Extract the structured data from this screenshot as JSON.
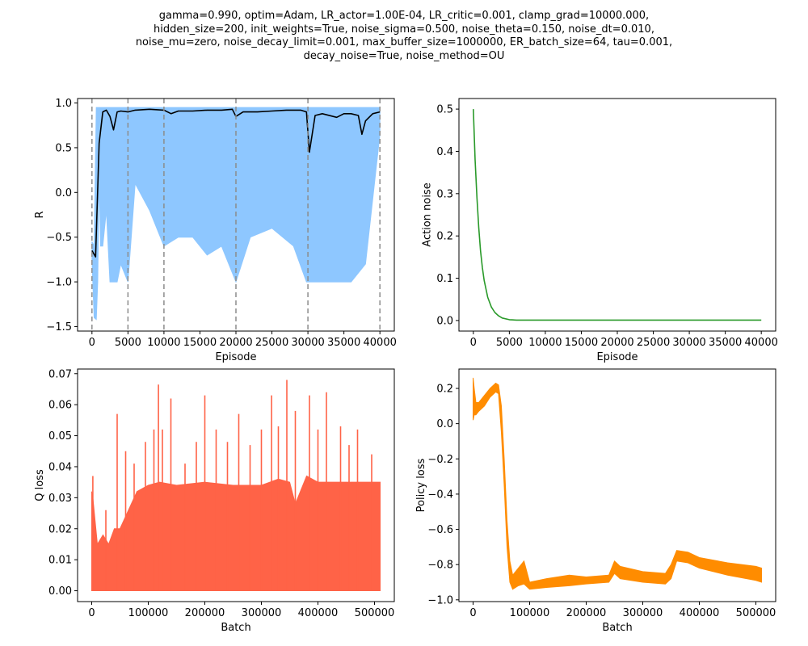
{
  "suptitle_lines": [
    "gamma=0.990, optim=Adam, LR_actor=1.00E-04, LR_critic=0.001, clamp_grad=10000.000,",
    "hidden_size=200, init_weights=True, noise_sigma=0.500, noise_theta=0.150, noise_dt=0.010,",
    "noise_mu=zero, noise_decay_limit=0.001, max_buffer_size=1000000, ER_batch_size=64, tau=0.001,",
    "decay_noise=True, noise_method=OU"
  ],
  "chart_data": [
    {
      "id": "reward",
      "type": "line",
      "xlabel": "Episode",
      "ylabel": "R",
      "xlim": [
        -2000,
        42000
      ],
      "ylim": [
        -1.55,
        1.05
      ],
      "xticks": [
        0,
        5000,
        10000,
        15000,
        20000,
        25000,
        30000,
        35000,
        40000
      ],
      "yticks": [
        -1.5,
        -1.0,
        -0.5,
        0.0,
        0.5,
        1.0
      ],
      "ytick_labels": [
        "−1.5",
        "−1.0",
        "−0.5",
        "0.0",
        "0.5",
        "1.0"
      ],
      "vlines": [
        0,
        5000,
        10000,
        20000,
        30000,
        40000
      ],
      "vline_color": "#8c8c8c",
      "series": [
        {
          "style": "band",
          "color": "#8ec7ff",
          "x": [
            0,
            300,
            600,
            800,
            1000,
            1200,
            1500,
            2000,
            2500,
            3000,
            3500,
            4000,
            5000,
            6000,
            8000,
            10000,
            12000,
            14000,
            16000,
            18000,
            20000,
            22000,
            25000,
            28000,
            29800,
            30200,
            32000,
            34000,
            36000,
            38000,
            40000
          ],
          "upper": [
            -0.55,
            -0.6,
            0.95,
            0.95,
            0.95,
            0.95,
            0.95,
            0.95,
            0.95,
            0.95,
            0.95,
            0.95,
            0.95,
            0.95,
            0.95,
            0.95,
            0.95,
            0.95,
            0.95,
            0.95,
            0.95,
            0.95,
            0.95,
            0.95,
            0.95,
            0.95,
            0.95,
            0.95,
            0.95,
            0.95,
            0.95
          ],
          "lower": [
            -0.75,
            -1.4,
            -1.42,
            -1.0,
            0.2,
            -0.6,
            -0.6,
            -0.2,
            -1.0,
            -1.0,
            -1.0,
            -0.8,
            -1.0,
            0.1,
            -0.2,
            -0.6,
            -0.5,
            -0.5,
            -0.7,
            -0.6,
            -1.0,
            -0.5,
            -0.4,
            -0.6,
            -1.0,
            -1.0,
            -1.0,
            -1.0,
            -1.0,
            -0.8,
            0.65
          ]
        },
        {
          "style": "line",
          "color": "#000000",
          "x": [
            0,
            500,
            1000,
            1500,
            2000,
            2500,
            3000,
            3500,
            4000,
            5000,
            6000,
            8000,
            10000,
            11000,
            12000,
            14000,
            16000,
            18000,
            19500,
            20000,
            21000,
            23000,
            25000,
            27000,
            29000,
            29800,
            30200,
            31000,
            32000,
            34000,
            35000,
            36000,
            37000,
            37500,
            38000,
            39000,
            40000
          ],
          "y": [
            -0.65,
            -0.72,
            0.55,
            0.9,
            0.92,
            0.85,
            0.7,
            0.9,
            0.91,
            0.9,
            0.92,
            0.93,
            0.92,
            0.88,
            0.91,
            0.91,
            0.92,
            0.92,
            0.93,
            0.85,
            0.9,
            0.9,
            0.91,
            0.92,
            0.92,
            0.9,
            0.45,
            0.86,
            0.88,
            0.84,
            0.88,
            0.88,
            0.86,
            0.65,
            0.8,
            0.88,
            0.9
          ]
        }
      ]
    },
    {
      "id": "noise",
      "type": "line",
      "xlabel": "Episode",
      "ylabel": "Action noise",
      "xlim": [
        -2000,
        42000
      ],
      "ylim": [
        -0.025,
        0.525
      ],
      "xticks": [
        0,
        5000,
        10000,
        15000,
        20000,
        25000,
        30000,
        35000,
        40000
      ],
      "yticks": [
        0.0,
        0.1,
        0.2,
        0.3,
        0.4,
        0.5
      ],
      "ytick_labels": [
        "0.0",
        "0.1",
        "0.2",
        "0.3",
        "0.4",
        "0.5"
      ],
      "series": [
        {
          "style": "line",
          "color": "#2a9a2a",
          "x": [
            0,
            250,
            500,
            750,
            1000,
            1250,
            1500,
            2000,
            2500,
            3000,
            3500,
            4000,
            5000,
            6000,
            8000,
            10000,
            20000,
            30000,
            40000
          ],
          "y": [
            0.5,
            0.38,
            0.29,
            0.22,
            0.165,
            0.125,
            0.095,
            0.055,
            0.032,
            0.019,
            0.011,
            0.006,
            0.002,
            0.001,
            0.001,
            0.001,
            0.001,
            0.001,
            0.001
          ]
        }
      ]
    },
    {
      "id": "qloss",
      "type": "line",
      "xlabel": "Batch",
      "ylabel": "Q loss",
      "xlim": [
        -25000,
        535000
      ],
      "ylim": [
        -0.0035,
        0.0715
      ],
      "xticks": [
        0,
        100000,
        200000,
        300000,
        400000,
        500000
      ],
      "yticks": [
        0.0,
        0.01,
        0.02,
        0.03,
        0.04,
        0.05,
        0.06,
        0.07
      ],
      "ytick_labels": [
        "0.00",
        "0.01",
        "0.02",
        "0.03",
        "0.04",
        "0.05",
        "0.06",
        "0.07"
      ],
      "series": [
        {
          "style": "band",
          "color": "#ff6347",
          "x": [
            0,
            2000,
            10000,
            20000,
            30000,
            40000,
            50000,
            60000,
            70000,
            80000,
            100000,
            120000,
            150000,
            200000,
            250000,
            300000,
            330000,
            350000,
            360000,
            380000,
            400000,
            450000,
            500000,
            510000
          ],
          "upper": [
            0.032,
            0.03,
            0.015,
            0.018,
            0.015,
            0.02,
            0.02,
            0.024,
            0.028,
            0.032,
            0.034,
            0.035,
            0.034,
            0.035,
            0.034,
            0.034,
            0.036,
            0.035,
            0.028,
            0.037,
            0.035,
            0.035,
            0.035,
            0.035
          ],
          "lower": [
            0.0,
            0.0,
            0.0,
            0.0,
            0.0,
            0.0,
            0.0,
            0.0,
            0.0,
            0.0,
            0.0,
            0.0,
            0.0,
            0.0,
            0.0,
            0.0,
            0.0,
            0.0,
            0.0,
            0.0,
            0.0,
            0.0,
            0.0,
            0.0
          ]
        },
        {
          "style": "spikes",
          "color": "#ff6347",
          "x": [
            2000,
            25000,
            45000,
            60000,
            75000,
            95000,
            110000,
            118000,
            125000,
            140000,
            165000,
            185000,
            200000,
            220000,
            240000,
            260000,
            280000,
            300000,
            318000,
            330000,
            345000,
            360000,
            385000,
            400000,
            415000,
            440000,
            455000,
            470000,
            495000
          ],
          "y": [
            0.037,
            0.026,
            0.057,
            0.045,
            0.041,
            0.048,
            0.052,
            0.0665,
            0.052,
            0.062,
            0.041,
            0.048,
            0.063,
            0.052,
            0.048,
            0.057,
            0.047,
            0.052,
            0.063,
            0.053,
            0.068,
            0.058,
            0.063,
            0.052,
            0.064,
            0.053,
            0.047,
            0.052,
            0.044
          ]
        }
      ]
    },
    {
      "id": "policyloss",
      "type": "line",
      "xlabel": "Batch",
      "ylabel": "Policy loss",
      "xlim": [
        -25000,
        535000
      ],
      "ylim": [
        -1.01,
        0.31
      ],
      "xticks": [
        0,
        100000,
        200000,
        300000,
        400000,
        500000
      ],
      "yticks": [
        -1.0,
        -0.8,
        -0.6,
        -0.4,
        -0.2,
        0.0,
        0.2
      ],
      "ytick_labels": [
        "−1.0",
        "−0.8",
        "−0.6",
        "−0.4",
        "−0.2",
        "0.0",
        "0.2"
      ],
      "series": [
        {
          "style": "band",
          "color": "#ff8c00",
          "x": [
            0,
            2000,
            5000,
            10000,
            20000,
            30000,
            40000,
            45000,
            50000,
            55000,
            60000,
            65000,
            70000,
            80000,
            90000,
            100000,
            130000,
            170000,
            200000,
            240000,
            250000,
            260000,
            300000,
            340000,
            350000,
            360000,
            380000,
            400000,
            450000,
            500000,
            510000
          ],
          "upper": [
            0.26,
            0.2,
            0.12,
            0.12,
            0.16,
            0.2,
            0.23,
            0.22,
            0.1,
            -0.2,
            -0.55,
            -0.78,
            -0.86,
            -0.82,
            -0.78,
            -0.9,
            -0.88,
            -0.86,
            -0.87,
            -0.86,
            -0.78,
            -0.81,
            -0.84,
            -0.85,
            -0.8,
            -0.72,
            -0.73,
            -0.76,
            -0.79,
            -0.81,
            -0.82
          ],
          "lower": [
            0.02,
            0.05,
            0.05,
            0.07,
            0.1,
            0.15,
            0.18,
            0.17,
            -0.05,
            -0.35,
            -0.7,
            -0.9,
            -0.94,
            -0.92,
            -0.91,
            -0.94,
            -0.93,
            -0.92,
            -0.91,
            -0.9,
            -0.85,
            -0.88,
            -0.9,
            -0.91,
            -0.88,
            -0.78,
            -0.79,
            -0.82,
            -0.86,
            -0.89,
            -0.9
          ]
        }
      ]
    }
  ]
}
